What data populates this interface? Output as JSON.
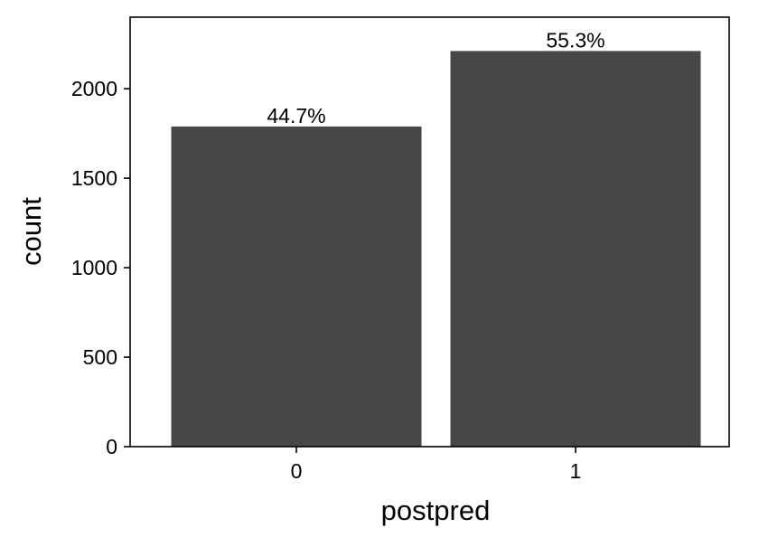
{
  "chart_data": {
    "type": "bar",
    "categories": [
      "0",
      "1"
    ],
    "values": [
      1789,
      2211
    ],
    "data_labels": [
      "44.7%",
      "55.3%"
    ],
    "xlabel": "postpred",
    "ylabel": "count",
    "ylim": [
      0,
      2400
    ],
    "yticks": [
      0,
      500,
      1000,
      1500,
      2000
    ],
    "ytick_labels": [
      "0",
      "500",
      "1000",
      "1500",
      "2000"
    ],
    "grid": false,
    "legend": "none",
    "colors": {
      "bar": "#474747",
      "frame": "#000000",
      "background": "#ffffff"
    }
  }
}
